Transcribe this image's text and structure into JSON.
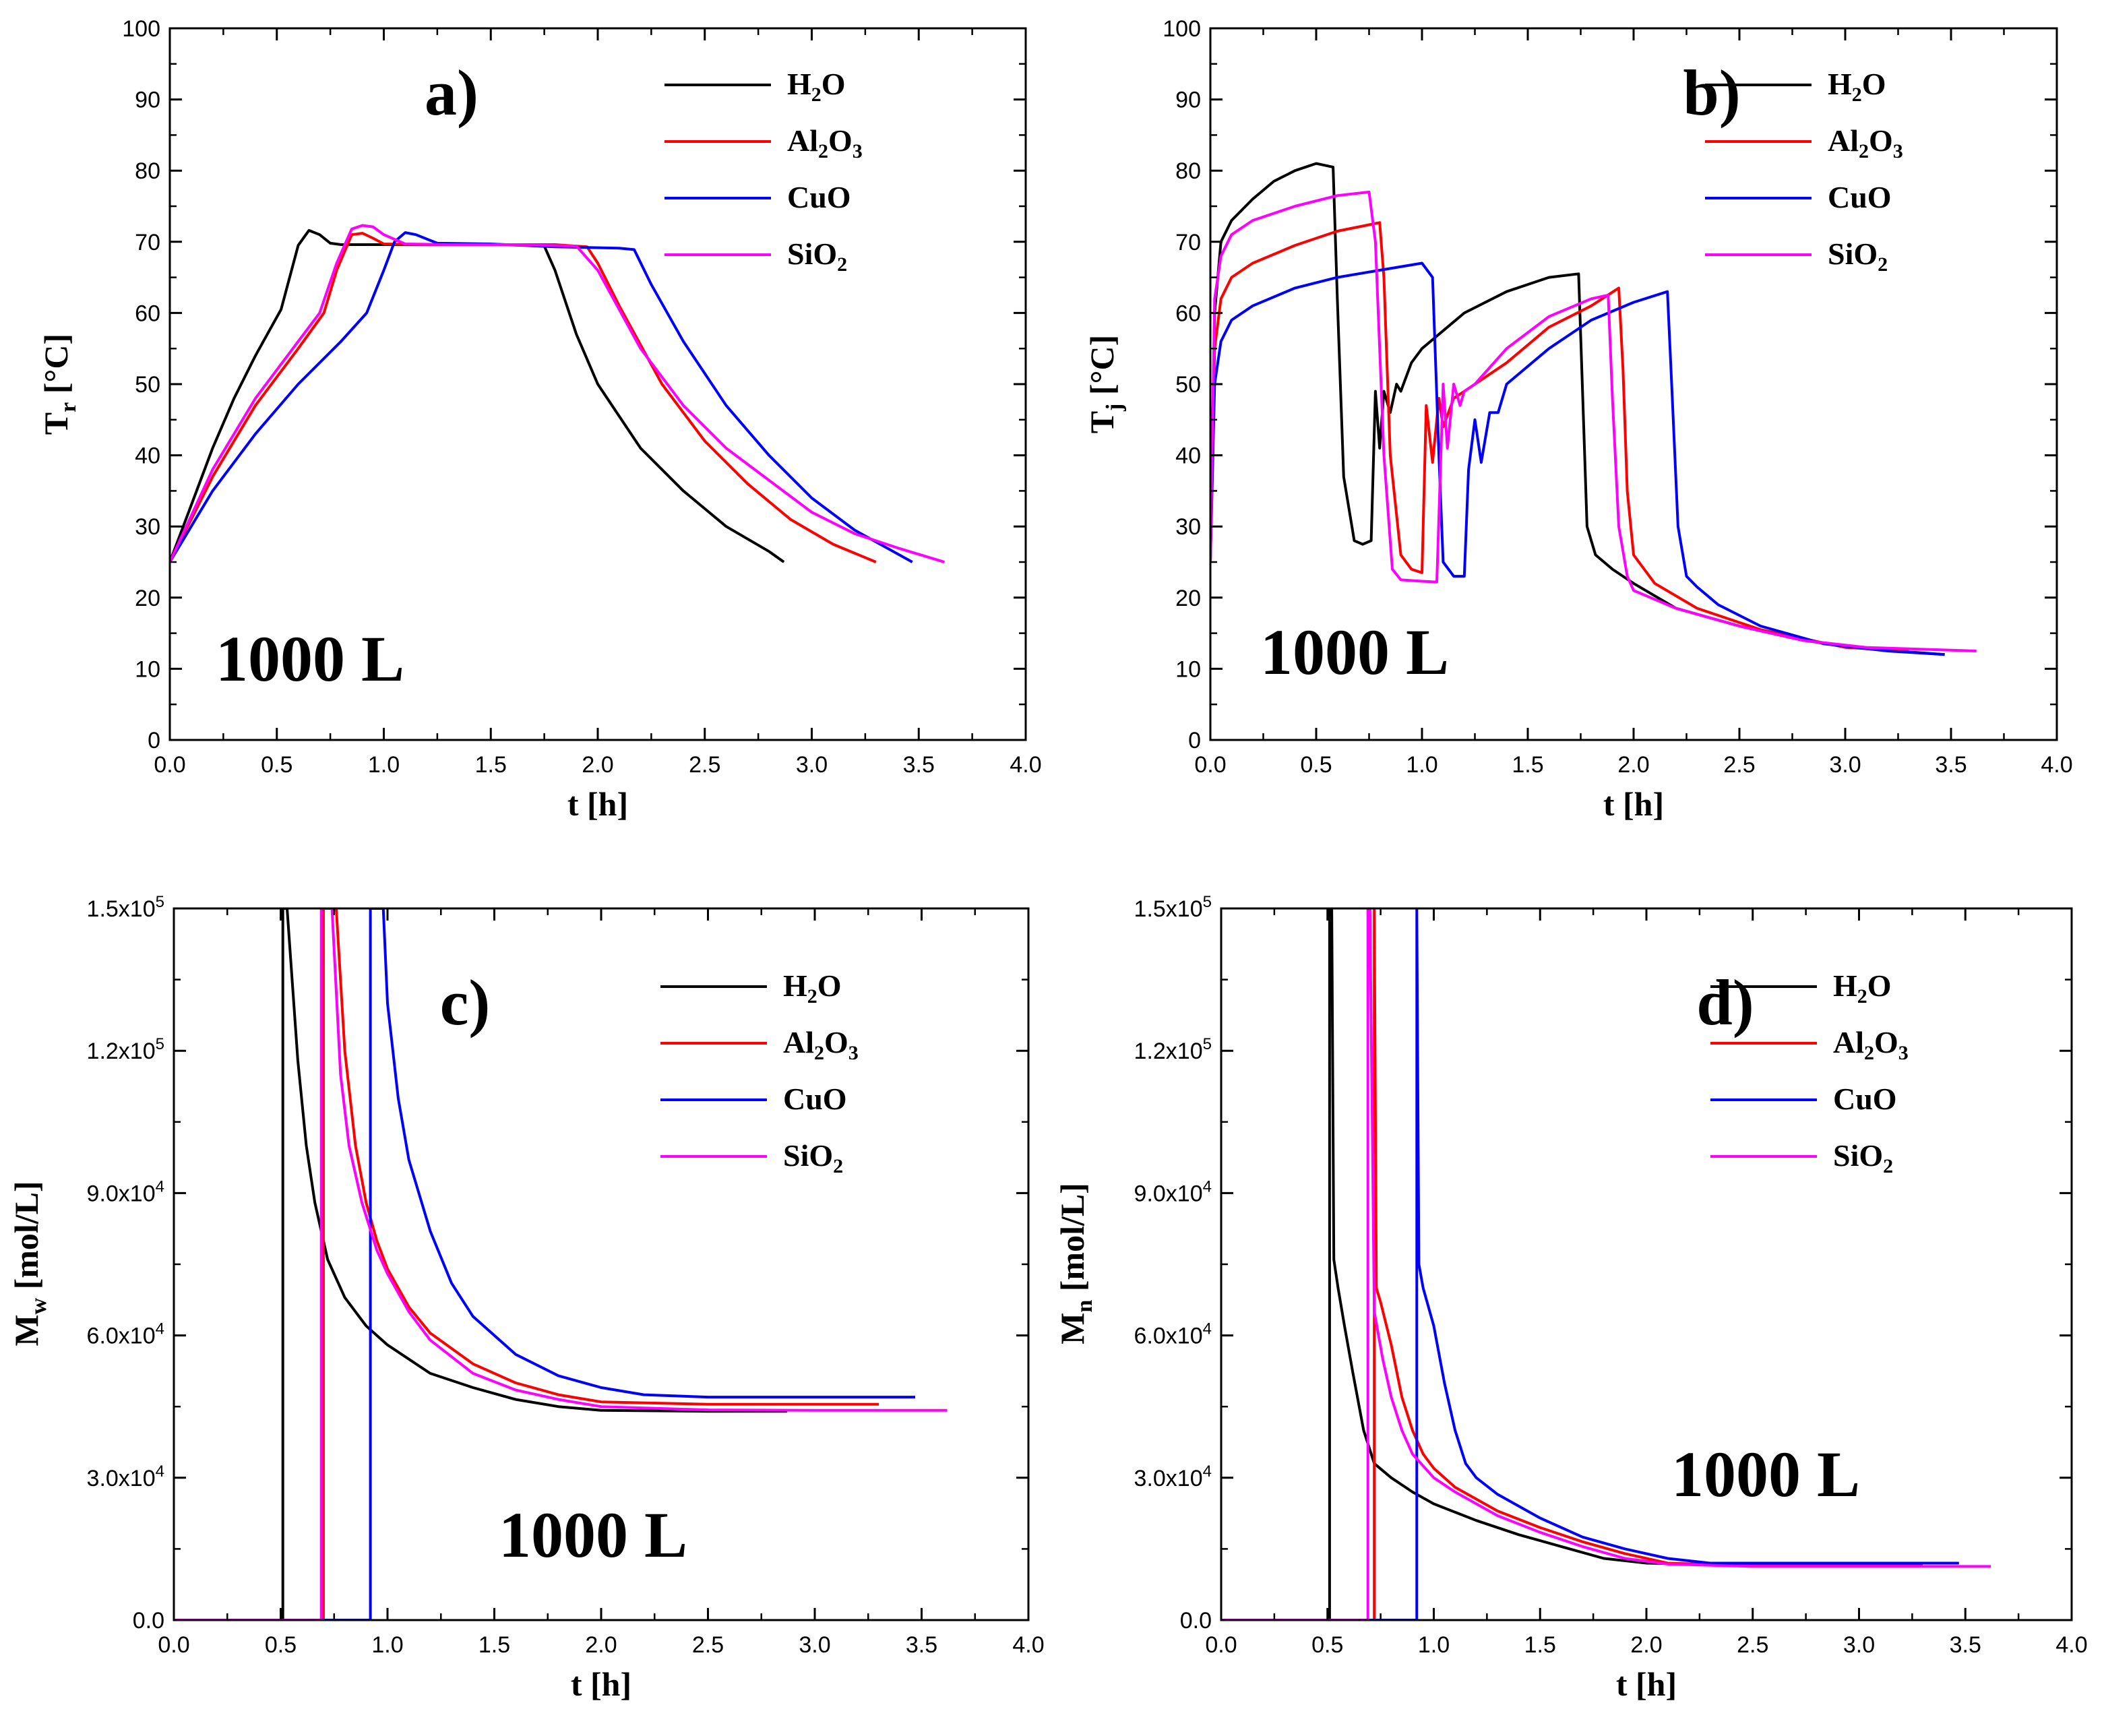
{
  "chart_data": [
    {
      "type": "line",
      "panel_label": "a)",
      "annotation": "1000 L",
      "xlabel": "t [h]",
      "ylabel": {
        "main": "T",
        "sub": "r",
        "rest": " [°C]"
      },
      "xlim": [
        0,
        4
      ],
      "ylim": [
        0,
        100
      ],
      "xticks": [
        "0.0",
        "0.5",
        "1.0",
        "1.5",
        "2.0",
        "2.5",
        "3.0",
        "3.5",
        "4.0"
      ],
      "yticks": [
        "0",
        "10",
        "20",
        "30",
        "40",
        "50",
        "60",
        "70",
        "80",
        "90",
        "100"
      ],
      "legend_position": "top-right",
      "series": [
        {
          "name": "H2O",
          "legend": {
            "main": "H",
            "sub": "2",
            "rest": "O"
          },
          "color": "#000000",
          "x": [
            0,
            0.1,
            0.2,
            0.3,
            0.4,
            0.52,
            0.56,
            0.6,
            0.65,
            0.7,
            0.75,
            0.8,
            1.0,
            1.3,
            1.6,
            1.75,
            1.8,
            1.9,
            2.0,
            2.2,
            2.4,
            2.6,
            2.8,
            2.87
          ],
          "y": [
            25,
            33,
            41,
            48,
            54,
            60.5,
            65,
            69.5,
            71.6,
            71,
            69.8,
            69.6,
            69.6,
            69.6,
            69.6,
            69.4,
            66,
            57,
            50,
            41,
            35,
            30,
            26.5,
            25
          ]
        },
        {
          "name": "Al2O3",
          "legend": {
            "main": "Al",
            "sub": "2",
            "rest": "O",
            "sub2": "3"
          },
          "color": "#ff0000",
          "x": [
            0,
            0.2,
            0.4,
            0.6,
            0.72,
            0.78,
            0.85,
            0.9,
            0.95,
            1.0,
            1.2,
            1.5,
            1.8,
            1.95,
            2.0,
            2.1,
            2.3,
            2.5,
            2.7,
            2.9,
            3.1,
            3.3
          ],
          "y": [
            25,
            37,
            47,
            55,
            60,
            66,
            71,
            71.2,
            70.5,
            69.7,
            69.6,
            69.6,
            69.6,
            69.3,
            67,
            61,
            50,
            42,
            36,
            31,
            27.5,
            25
          ]
        },
        {
          "name": "CuO",
          "legend": {
            "main": "CuO"
          },
          "color": "#0000ff",
          "x": [
            0,
            0.2,
            0.4,
            0.6,
            0.8,
            0.92,
            1.0,
            1.05,
            1.1,
            1.15,
            1.25,
            1.5,
            1.8,
            2.1,
            2.17,
            2.25,
            2.4,
            2.6,
            2.8,
            3.0,
            3.2,
            3.47
          ],
          "y": [
            25,
            35,
            43,
            50,
            56,
            60,
            66,
            70,
            71.3,
            71,
            69.8,
            69.7,
            69.3,
            69.1,
            68.9,
            64,
            56,
            47,
            40,
            34,
            29.5,
            25
          ]
        },
        {
          "name": "SiO2",
          "legend": {
            "main": "SiO",
            "sub": "2"
          },
          "color": "#ff00ff",
          "x": [
            0,
            0.2,
            0.4,
            0.6,
            0.7,
            0.78,
            0.85,
            0.9,
            0.95,
            1.0,
            1.1,
            1.3,
            1.6,
            1.9,
            2.0,
            2.2,
            2.4,
            2.6,
            2.8,
            3.0,
            3.2,
            3.4,
            3.62
          ],
          "y": [
            25,
            38,
            48,
            56,
            60,
            67,
            71.8,
            72.3,
            72.1,
            71,
            69.7,
            69.6,
            69.6,
            69.4,
            66,
            55,
            47,
            41,
            36.5,
            32,
            29,
            27,
            25
          ]
        }
      ]
    },
    {
      "type": "line",
      "panel_label": "b)",
      "annotation": "1000 L",
      "xlabel": "t [h]",
      "ylabel": {
        "main": "T",
        "sub": "j",
        "rest": " [°C]"
      },
      "xlim": [
        0,
        4
      ],
      "ylim": [
        0,
        100
      ],
      "xticks": [
        "0.0",
        "0.5",
        "1.0",
        "1.5",
        "2.0",
        "2.5",
        "3.0",
        "3.5",
        "4.0"
      ],
      "yticks": [
        "0",
        "10",
        "20",
        "30",
        "40",
        "50",
        "60",
        "70",
        "80",
        "90",
        "100"
      ],
      "legend_position": "top-right",
      "series": [
        {
          "name": "H2O",
          "legend": {
            "main": "H",
            "sub": "2",
            "rest": "O"
          },
          "color": "#000000",
          "x": [
            0,
            0.02,
            0.05,
            0.1,
            0.2,
            0.3,
            0.4,
            0.5,
            0.58,
            0.6,
            0.63,
            0.68,
            0.72,
            0.76,
            0.78,
            0.8,
            0.82,
            0.85,
            0.88,
            0.9,
            0.95,
            1.0,
            1.2,
            1.4,
            1.6,
            1.74,
            1.76,
            1.78,
            1.82,
            1.9,
            2.0,
            2.2,
            2.5,
            2.8,
            3.1,
            3.47
          ],
          "y": [
            25,
            60,
            70,
            73,
            76,
            78.5,
            80,
            81,
            80.5,
            62,
            37,
            28,
            27.5,
            28,
            49,
            41,
            49,
            46,
            50,
            49,
            53,
            55,
            60,
            63,
            65,
            65.5,
            48,
            30,
            26,
            24,
            22,
            18.5,
            16,
            14,
            12.8,
            12
          ]
        },
        {
          "name": "Al2O3",
          "legend": {
            "main": "Al",
            "sub": "2",
            "rest": "O",
            "sub2": "3"
          },
          "color": "#ff0000",
          "x": [
            0,
            0.02,
            0.05,
            0.1,
            0.2,
            0.4,
            0.6,
            0.8,
            0.82,
            0.85,
            0.9,
            0.95,
            1.0,
            1.02,
            1.05,
            1.08,
            1.1,
            1.15,
            1.2,
            1.4,
            1.6,
            1.8,
            1.93,
            1.95,
            1.97,
            2.0,
            2.1,
            2.3,
            2.6,
            3.0,
            3.3
          ],
          "y": [
            25,
            55,
            62,
            65,
            67,
            69.5,
            71.5,
            72.7,
            65,
            40,
            26,
            24,
            23.5,
            47,
            39,
            48,
            44,
            48,
            49,
            53,
            58,
            61,
            63.5,
            52,
            35,
            26,
            22,
            18.5,
            15.5,
            13,
            12.5
          ]
        },
        {
          "name": "CuO",
          "legend": {
            "main": "CuO"
          },
          "color": "#0000ff",
          "x": [
            0,
            0.02,
            0.05,
            0.1,
            0.2,
            0.4,
            0.6,
            0.8,
            1.0,
            1.05,
            1.08,
            1.1,
            1.15,
            1.2,
            1.22,
            1.25,
            1.28,
            1.32,
            1.36,
            1.4,
            1.6,
            1.8,
            2.0,
            2.16,
            2.18,
            2.21,
            2.25,
            2.3,
            2.4,
            2.6,
            2.9,
            3.2,
            3.47
          ],
          "y": [
            25,
            50,
            56,
            59,
            61,
            63.5,
            65,
            66,
            67,
            65,
            40,
            25,
            23,
            23,
            38,
            45,
            39,
            46,
            46,
            50,
            55,
            59,
            61.5,
            63,
            50,
            30,
            23,
            21.5,
            19,
            16,
            13.5,
            12.5,
            12
          ]
        },
        {
          "name": "SiO2",
          "legend": {
            "main": "SiO",
            "sub": "2"
          },
          "color": "#ff00ff",
          "x": [
            0,
            0.02,
            0.05,
            0.1,
            0.2,
            0.4,
            0.6,
            0.75,
            0.78,
            0.82,
            0.86,
            0.9,
            1.0,
            1.07,
            1.1,
            1.12,
            1.15,
            1.18,
            1.2,
            1.25,
            1.4,
            1.6,
            1.8,
            1.88,
            1.9,
            1.93,
            1.97,
            2.0,
            2.2,
            2.5,
            2.8,
            3.1,
            3.62
          ],
          "y": [
            25,
            62,
            68,
            71,
            73,
            75,
            76.5,
            77,
            70,
            40,
            24,
            22.5,
            22.3,
            22.2,
            50,
            41,
            50,
            47,
            49,
            50,
            55,
            59.5,
            62,
            62.5,
            48,
            30,
            23,
            21,
            18.5,
            16,
            14,
            13,
            12.5
          ]
        }
      ]
    },
    {
      "type": "line",
      "panel_label": "c)",
      "annotation": "1000 L",
      "xlabel": "t [h]",
      "ylabel": {
        "main": "M",
        "sub": "w",
        "rest": " [mol/L]"
      },
      "xlim": [
        0,
        4
      ],
      "ylim": [
        0,
        150000
      ],
      "xticks": [
        "0.0",
        "0.5",
        "1.0",
        "1.5",
        "2.0",
        "2.5",
        "3.0",
        "3.5",
        "4.0"
      ],
      "yticks": [
        {
          "base": "0.0",
          "exp": ""
        },
        {
          "base": "3.0x10",
          "exp": "4"
        },
        {
          "base": "6.0x10",
          "exp": "4"
        },
        {
          "base": "9.0x10",
          "exp": "4"
        },
        {
          "base": "1.2x10",
          "exp": "5"
        },
        {
          "base": "1.5x10",
          "exp": "5"
        }
      ],
      "legend_position": "top-right",
      "series": [
        {
          "name": "H2O",
          "legend": {
            "main": "H",
            "sub": "2",
            "rest": "O"
          },
          "color": "#000000",
          "x": [
            0,
            0.51,
            0.51,
            0.53,
            0.58,
            0.62,
            0.66,
            0.72,
            0.8,
            0.9,
            1.0,
            1.2,
            1.4,
            1.6,
            1.8,
            2.0,
            2.5,
            2.87
          ],
          "y": [
            0,
            0,
            150000,
            150000,
            118000,
            100000,
            88000,
            76000,
            68000,
            62000,
            58000,
            52000,
            49000,
            46500,
            45000,
            44200,
            44000,
            44000
          ]
        },
        {
          "name": "Al2O3",
          "legend": {
            "main": "Al",
            "sub": "2",
            "rest": "O",
            "sub2": "3"
          },
          "color": "#ff0000",
          "x": [
            0,
            0.7,
            0.7,
            0.76,
            0.8,
            0.85,
            0.9,
            0.95,
            1.0,
            1.1,
            1.2,
            1.4,
            1.6,
            1.8,
            2.0,
            2.5,
            3.3
          ],
          "y": [
            0,
            0,
            150000,
            150000,
            120000,
            100000,
            88000,
            80000,
            74000,
            66000,
            60500,
            54000,
            50000,
            47500,
            46000,
            45500,
            45500
          ]
        },
        {
          "name": "CuO",
          "legend": {
            "main": "CuO"
          },
          "color": "#0000ff",
          "x": [
            0,
            0.92,
            0.92,
            0.98,
            1.0,
            1.05,
            1.1,
            1.2,
            1.3,
            1.4,
            1.6,
            1.8,
            2.0,
            2.2,
            2.5,
            3.0,
            3.47
          ],
          "y": [
            0,
            0,
            150000,
            150000,
            130000,
            110000,
            97000,
            82000,
            71000,
            64000,
            56000,
            51500,
            49000,
            47500,
            47000,
            47000,
            47000
          ]
        },
        {
          "name": "SiO2",
          "legend": {
            "main": "SiO",
            "sub": "2"
          },
          "color": "#ff00ff",
          "x": [
            0,
            0.69,
            0.69,
            0.74,
            0.78,
            0.82,
            0.88,
            0.95,
            1.0,
            1.1,
            1.2,
            1.4,
            1.6,
            1.8,
            2.0,
            2.5,
            3.0,
            3.62
          ],
          "y": [
            0,
            0,
            150000,
            150000,
            115000,
            100000,
            88000,
            78000,
            73000,
            65000,
            59000,
            52000,
            48500,
            46500,
            45000,
            44300,
            44200,
            44200
          ]
        }
      ]
    },
    {
      "type": "line",
      "panel_label": "d)",
      "annotation": "1000 L",
      "xlabel": "t [h]",
      "ylabel": {
        "main": "M",
        "sub": "n",
        "rest": " [mol/L]"
      },
      "xlim": [
        0,
        4
      ],
      "ylim": [
        0,
        150000
      ],
      "xticks": [
        "0.0",
        "0.5",
        "1.0",
        "1.5",
        "2.0",
        "2.5",
        "3.0",
        "3.5",
        "4.0"
      ],
      "yticks": [
        {
          "base": "0.0",
          "exp": ""
        },
        {
          "base": "3.0x10",
          "exp": "4"
        },
        {
          "base": "6.0x10",
          "exp": "4"
        },
        {
          "base": "9.0x10",
          "exp": "4"
        },
        {
          "base": "1.2x10",
          "exp": "5"
        },
        {
          "base": "1.5x10",
          "exp": "5"
        }
      ],
      "legend_position": "top-right",
      "series": [
        {
          "name": "H2O",
          "legend": {
            "main": "H",
            "sub": "2",
            "rest": "O"
          },
          "color": "#000000",
          "x": [
            0,
            0.51,
            0.51,
            0.52,
            0.53,
            0.55,
            0.58,
            0.62,
            0.67,
            0.72,
            0.8,
            0.9,
            1.0,
            1.2,
            1.4,
            1.6,
            1.8,
            2.0,
            2.5,
            2.87
          ],
          "y": [
            0,
            0,
            150000,
            150000,
            76000,
            70000,
            62000,
            52000,
            40000,
            33000,
            30000,
            27000,
            24500,
            21000,
            18000,
            15500,
            13000,
            12000,
            11500,
            11500
          ]
        },
        {
          "name": "Al2O3",
          "legend": {
            "main": "Al",
            "sub": "2",
            "rest": "O",
            "sub2": "3"
          },
          "color": "#ff0000",
          "x": [
            0,
            0.72,
            0.72,
            0.73,
            0.75,
            0.8,
            0.85,
            0.9,
            0.95,
            1.0,
            1.1,
            1.3,
            1.5,
            1.7,
            1.9,
            2.1,
            2.5,
            3.3
          ],
          "y": [
            0,
            0,
            150000,
            70000,
            67000,
            58000,
            47000,
            40000,
            35000,
            32000,
            28000,
            23000,
            19500,
            16500,
            14000,
            12000,
            11500,
            11500
          ]
        },
        {
          "name": "CuO",
          "legend": {
            "main": "CuO"
          },
          "color": "#0000ff",
          "x": [
            0,
            0.92,
            0.92,
            0.93,
            0.95,
            1.0,
            1.05,
            1.1,
            1.15,
            1.2,
            1.3,
            1.5,
            1.7,
            1.9,
            2.1,
            2.3,
            2.6,
            3.0,
            3.47
          ],
          "y": [
            0,
            0,
            150000,
            75000,
            70000,
            62000,
            50000,
            40000,
            33000,
            30000,
            26500,
            21500,
            17500,
            15000,
            13000,
            12000,
            12000,
            12000,
            12000
          ]
        },
        {
          "name": "SiO2",
          "legend": {
            "main": "SiO",
            "sub": "2"
          },
          "color": "#ff00ff",
          "x": [
            0,
            0.69,
            0.69,
            0.7,
            0.72,
            0.76,
            0.8,
            0.85,
            0.9,
            1.0,
            1.1,
            1.3,
            1.5,
            1.7,
            1.9,
            2.1,
            2.5,
            3.0,
            3.62
          ],
          "y": [
            0,
            0,
            150000,
            150000,
            65000,
            55000,
            47000,
            40000,
            35000,
            30000,
            27000,
            22000,
            18500,
            15500,
            13000,
            11800,
            11300,
            11300,
            11300
          ]
        }
      ]
    }
  ]
}
